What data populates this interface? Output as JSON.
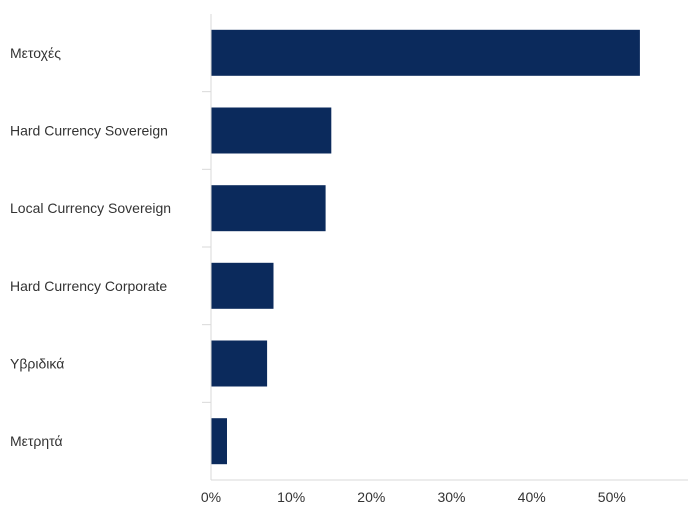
{
  "chart_data": {
    "type": "bar",
    "orientation": "horizontal",
    "title": "",
    "xlabel": "",
    "ylabel": "",
    "categories": [
      "Μετοχές",
      "Hard Currency Sovereign",
      "Local Currency Sovereign",
      "Hard Currency Corporate",
      "Υβριδικά",
      "Μετρητά"
    ],
    "values": [
      53.5,
      15.0,
      14.3,
      7.8,
      7.0,
      2.0
    ],
    "xlim": [
      0,
      59.5
    ],
    "x_ticks": [
      0,
      10,
      20,
      30,
      40,
      50
    ],
    "x_tick_labels": [
      "0%",
      "10%",
      "20%",
      "30%",
      "40%",
      "50%"
    ],
    "grid": false,
    "legend": "none",
    "bar_color": "#0b2a5c"
  }
}
